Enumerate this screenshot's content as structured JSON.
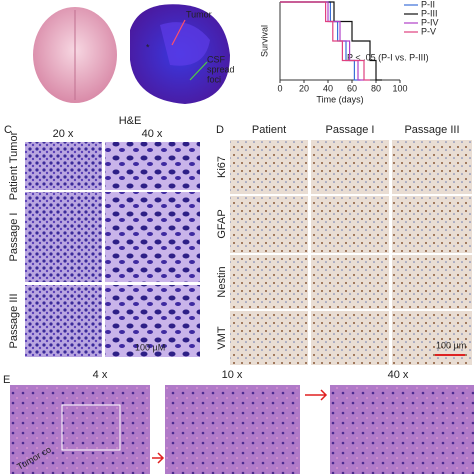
{
  "top": {
    "tumor_label": "Tumor",
    "star": "*",
    "csf_label": [
      "CSF",
      "spread",
      "foci"
    ]
  },
  "chart_data": {
    "type": "line",
    "y_label": "Survival",
    "x_label": "Time (days)",
    "annotation": "P < .05 (P-I vs. P-III)",
    "xlim": [
      0,
      100
    ],
    "xticks": [
      0,
      20,
      40,
      60,
      80,
      100
    ],
    "ylim": [
      0,
      100
    ],
    "series": [
      {
        "name": "P-II",
        "color": "#3b6fd8",
        "x": [
          0,
          42,
          48,
          55,
          62
        ],
        "values": [
          100,
          75,
          50,
          25,
          0
        ]
      },
      {
        "name": "P-III",
        "color": "#111111",
        "x": [
          0,
          45,
          60,
          75,
          80
        ],
        "values": [
          100,
          75,
          50,
          25,
          0
        ]
      },
      {
        "name": "P-IV",
        "color": "#b040c8",
        "x": [
          0,
          40,
          50,
          58,
          65
        ],
        "values": [
          100,
          75,
          50,
          25,
          0
        ]
      },
      {
        "name": "P-V",
        "color": "#e0407f",
        "x": [
          0,
          38,
          44,
          52,
          70
        ],
        "values": [
          100,
          75,
          50,
          25,
          0
        ]
      }
    ]
  },
  "panel_c": {
    "label": "C",
    "title": "H&E",
    "columns": [
      "20 x",
      "40 x"
    ],
    "rows": [
      "Patient Tumor",
      "Passage I",
      "Passage III"
    ],
    "scale": "100 µM"
  },
  "panel_d": {
    "label": "D",
    "columns": [
      "Patient",
      "Passage I",
      "Passage III"
    ],
    "rows": [
      "Ki67",
      "GFAP",
      "Nestin",
      "VMT"
    ],
    "scale": "100 µm"
  },
  "panel_e": {
    "label": "E",
    "columns": [
      "4 x",
      "10 x",
      "40 x"
    ],
    "image_text": "Tumor co"
  }
}
